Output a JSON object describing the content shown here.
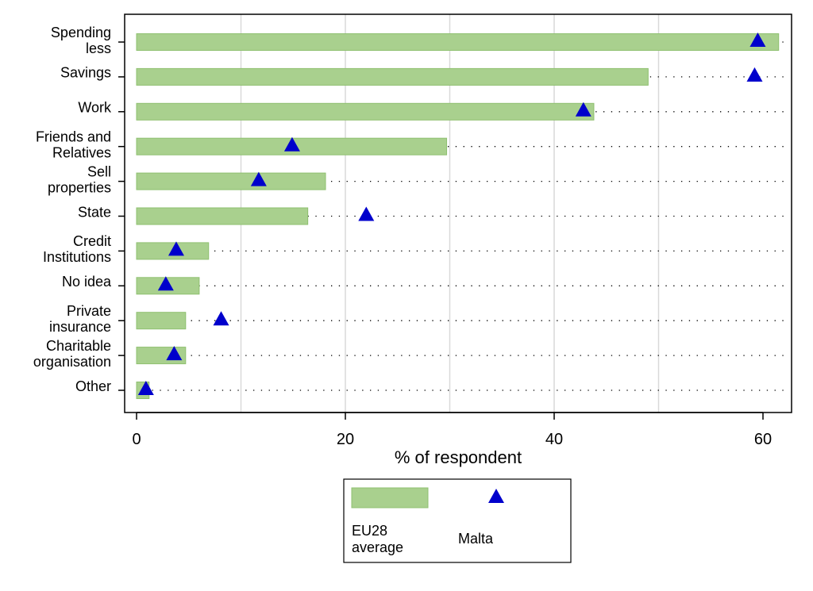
{
  "chart_data": {
    "type": "bar",
    "categories": [
      [
        "Spending",
        "less"
      ],
      [
        "Savings"
      ],
      [
        "Work"
      ],
      [
        "Friends and",
        "Relatives"
      ],
      [
        "Sell",
        "properties"
      ],
      [
        "State"
      ],
      [
        "Credit",
        "Institutions"
      ],
      [
        "No idea"
      ],
      [
        "Private",
        "insurance"
      ],
      [
        "Charitable",
        "organisation"
      ],
      [
        "Other"
      ]
    ],
    "series": [
      {
        "name": [
          "EU28",
          "average"
        ],
        "kind": "bar",
        "color": "#a9d08e",
        "values": [
          61.5,
          49,
          43.8,
          29.7,
          18.1,
          16.4,
          6.9,
          6.0,
          4.7,
          4.7,
          1.2
        ]
      },
      {
        "name": [
          "Malta"
        ],
        "kind": "triangle-marker",
        "color": "#0000cc",
        "values": [
          59.5,
          59.2,
          42.8,
          14.9,
          11.7,
          22.0,
          3.8,
          2.8,
          8.1,
          3.6,
          0.9
        ]
      }
    ],
    "xlabel": "% of respondent",
    "ylabel": "",
    "xlim": [
      -1.2,
      61.5
    ],
    "xticks": [
      0,
      20,
      40,
      60
    ],
    "gridlines_x": [
      10,
      20,
      30,
      40,
      50
    ],
    "dotted_row_guides": true,
    "legend_position": "bottom"
  }
}
